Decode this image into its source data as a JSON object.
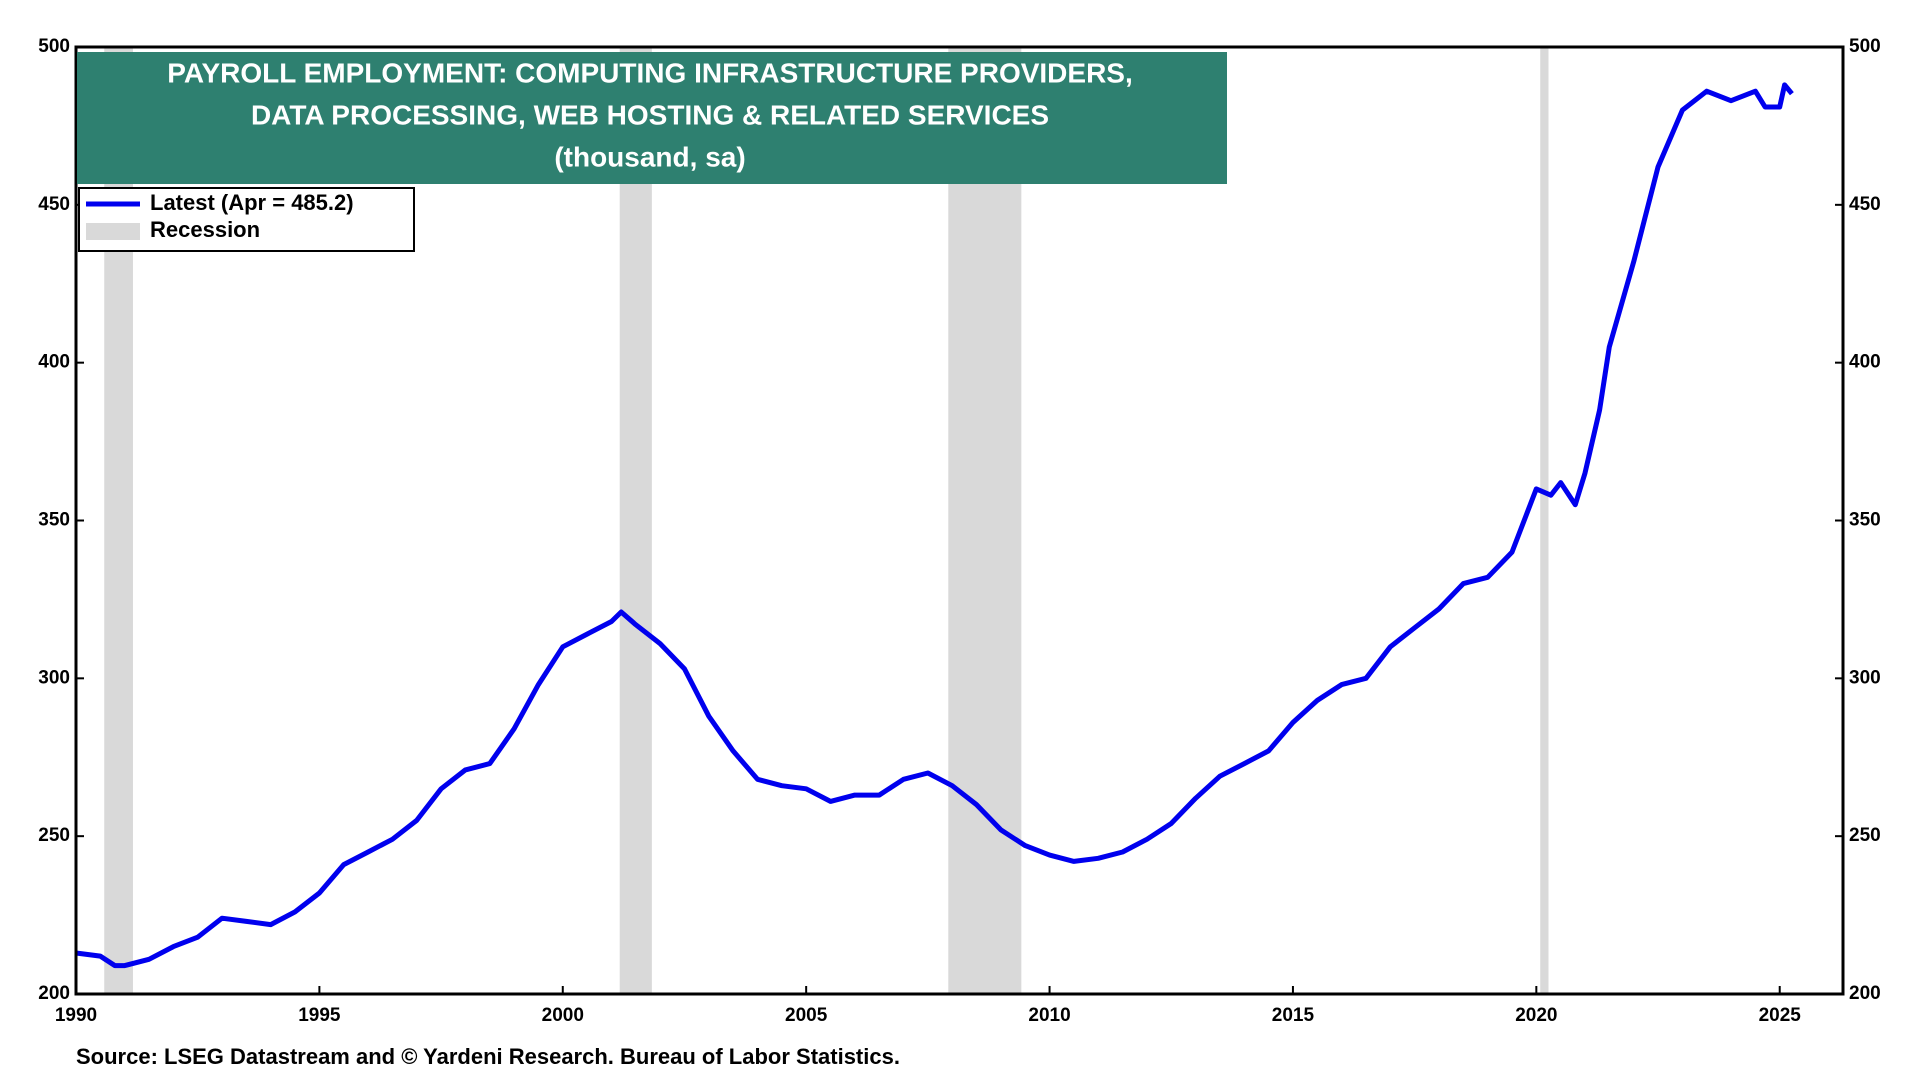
{
  "chart_data": {
    "type": "line",
    "title": [
      "PAYROLL EMPLOYMENT: COMPUTING INFRASTRUCTURE PROVIDERS,",
      "DATA PROCESSING, WEB HOSTING & RELATED SERVICES",
      "(thousand, sa)"
    ],
    "source": "Source: LSEG Datastream and © Yardeni Research. Bureau of Labor Statistics.",
    "xlim": [
      1990,
      2026.3
    ],
    "xticks": [
      1990,
      1995,
      2000,
      2005,
      2010,
      2015,
      2020,
      2025
    ],
    "ylim": [
      200,
      500
    ],
    "yticks": [
      200,
      250,
      300,
      350,
      400,
      450,
      500
    ],
    "recession_name": "Recession",
    "recession_color": "#d9d9d9",
    "recessions": [
      [
        1990.58,
        1991.17
      ],
      [
        2001.17,
        2001.83
      ],
      [
        2007.92,
        2009.42
      ],
      [
        2020.08,
        2020.25
      ]
    ],
    "x": [
      1990.0,
      1990.5,
      1990.8,
      1991.0,
      1991.5,
      1992.0,
      1992.5,
      1993.0,
      1993.5,
      1994.0,
      1994.5,
      1995.0,
      1995.5,
      1996.0,
      1996.5,
      1997.0,
      1997.5,
      1998.0,
      1998.5,
      1999.0,
      1999.5,
      2000.0,
      2000.5,
      2001.0,
      2001.2,
      2001.5,
      2002.0,
      2002.5,
      2003.0,
      2003.5,
      2004.0,
      2004.5,
      2005.0,
      2005.5,
      2006.0,
      2006.5,
      2007.0,
      2007.5,
      2008.0,
      2008.5,
      2009.0,
      2009.5,
      2010.0,
      2010.5,
      2011.0,
      2011.5,
      2012.0,
      2012.5,
      2013.0,
      2013.5,
      2014.0,
      2014.5,
      2015.0,
      2015.5,
      2016.0,
      2016.5,
      2017.0,
      2017.5,
      2018.0,
      2018.5,
      2019.0,
      2019.5,
      2020.0,
      2020.3,
      2020.5,
      2020.8,
      2021.0,
      2021.3,
      2021.5,
      2022.0,
      2022.3,
      2022.5,
      2023.0,
      2023.5,
      2024.0,
      2024.5,
      2024.7,
      2025.0,
      2025.1,
      2025.25
    ],
    "series": [
      {
        "name": "Latest (Apr = 485.2)",
        "color": "#0000ee",
        "values": [
          213,
          212,
          209,
          209,
          211,
          215,
          218,
          224,
          223,
          222,
          226,
          232,
          241,
          245,
          249,
          255,
          265,
          271,
          273,
          284,
          298,
          310,
          314,
          318,
          321,
          317,
          311,
          303,
          288,
          277,
          268,
          266,
          265,
          261,
          263,
          263,
          268,
          270,
          266,
          260,
          252,
          247,
          244,
          242,
          243,
          245,
          249,
          254,
          262,
          269,
          273,
          277,
          286,
          293,
          298,
          300,
          310,
          316,
          322,
          330,
          332,
          340,
          360,
          358,
          362,
          355,
          365,
          385,
          405,
          432,
          450,
          462,
          480,
          486,
          483,
          486,
          481,
          481,
          488,
          485.2
        ]
      }
    ]
  }
}
